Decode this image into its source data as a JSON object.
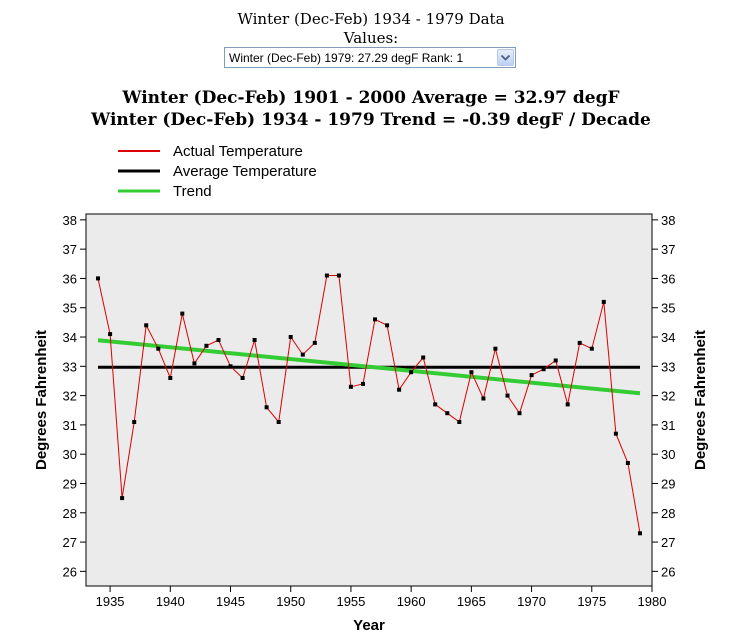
{
  "header": {
    "title": "Winter (Dec-Feb) 1934 - 1979 Data",
    "values_label": "Values:",
    "selector_value": "Winter (Dec-Feb) 1979: 27.29 degF   Rank: 1",
    "average_text": "Winter (Dec-Feb) 1901 - 2000 Average = 32.97 degF",
    "trend_text": "Winter (Dec-Feb) 1934 - 1979 Trend = -0.39 degF / Decade"
  },
  "chart_data": {
    "type": "line",
    "xlabel": "Year",
    "ylabel": "Degrees Fahrenheit",
    "xlim": [
      1933,
      1980
    ],
    "ylim": [
      25.5,
      38.2
    ],
    "xticks": [
      1935,
      1940,
      1945,
      1950,
      1955,
      1960,
      1965,
      1970,
      1975,
      1980
    ],
    "yticks": [
      26,
      27,
      28,
      29,
      30,
      31,
      32,
      33,
      34,
      35,
      36,
      37,
      38
    ],
    "legend": [
      {
        "label": "Actual Temperature",
        "color": "#dd0000"
      },
      {
        "label": "Average Temperature",
        "color": "#000000"
      },
      {
        "label": "Trend",
        "color": "#33cc33"
      }
    ],
    "legend_position": "top-left",
    "plot_background": "#ebebeb",
    "series": [
      {
        "name": "Actual Temperature",
        "color": "#dd0000",
        "x": [
          1934,
          1935,
          1936,
          1937,
          1938,
          1939,
          1940,
          1941,
          1942,
          1943,
          1944,
          1945,
          1946,
          1947,
          1948,
          1949,
          1950,
          1951,
          1952,
          1953,
          1954,
          1955,
          1956,
          1957,
          1958,
          1959,
          1960,
          1961,
          1962,
          1963,
          1964,
          1965,
          1966,
          1967,
          1968,
          1969,
          1970,
          1971,
          1972,
          1973,
          1974,
          1975,
          1976,
          1977,
          1978,
          1979
        ],
        "values": [
          36.0,
          34.1,
          28.5,
          31.1,
          34.4,
          33.6,
          32.6,
          34.8,
          33.1,
          33.7,
          33.9,
          33.0,
          32.6,
          33.9,
          31.6,
          31.1,
          34.0,
          33.4,
          33.8,
          36.1,
          36.1,
          32.3,
          32.4,
          34.6,
          34.4,
          32.2,
          32.8,
          33.3,
          31.7,
          31.4,
          31.1,
          32.8,
          31.9,
          33.6,
          32.0,
          31.4,
          32.7,
          32.9,
          33.2,
          31.7,
          33.8,
          33.6,
          35.2,
          30.7,
          29.7,
          27.3
        ]
      },
      {
        "name": "Average Temperature",
        "color": "#000000",
        "x": [
          1934,
          1979
        ],
        "values": [
          32.97,
          32.97
        ]
      },
      {
        "name": "Trend",
        "color": "#33cc33",
        "x": [
          1934,
          1979
        ],
        "values": [
          33.89,
          32.08
        ]
      }
    ]
  }
}
